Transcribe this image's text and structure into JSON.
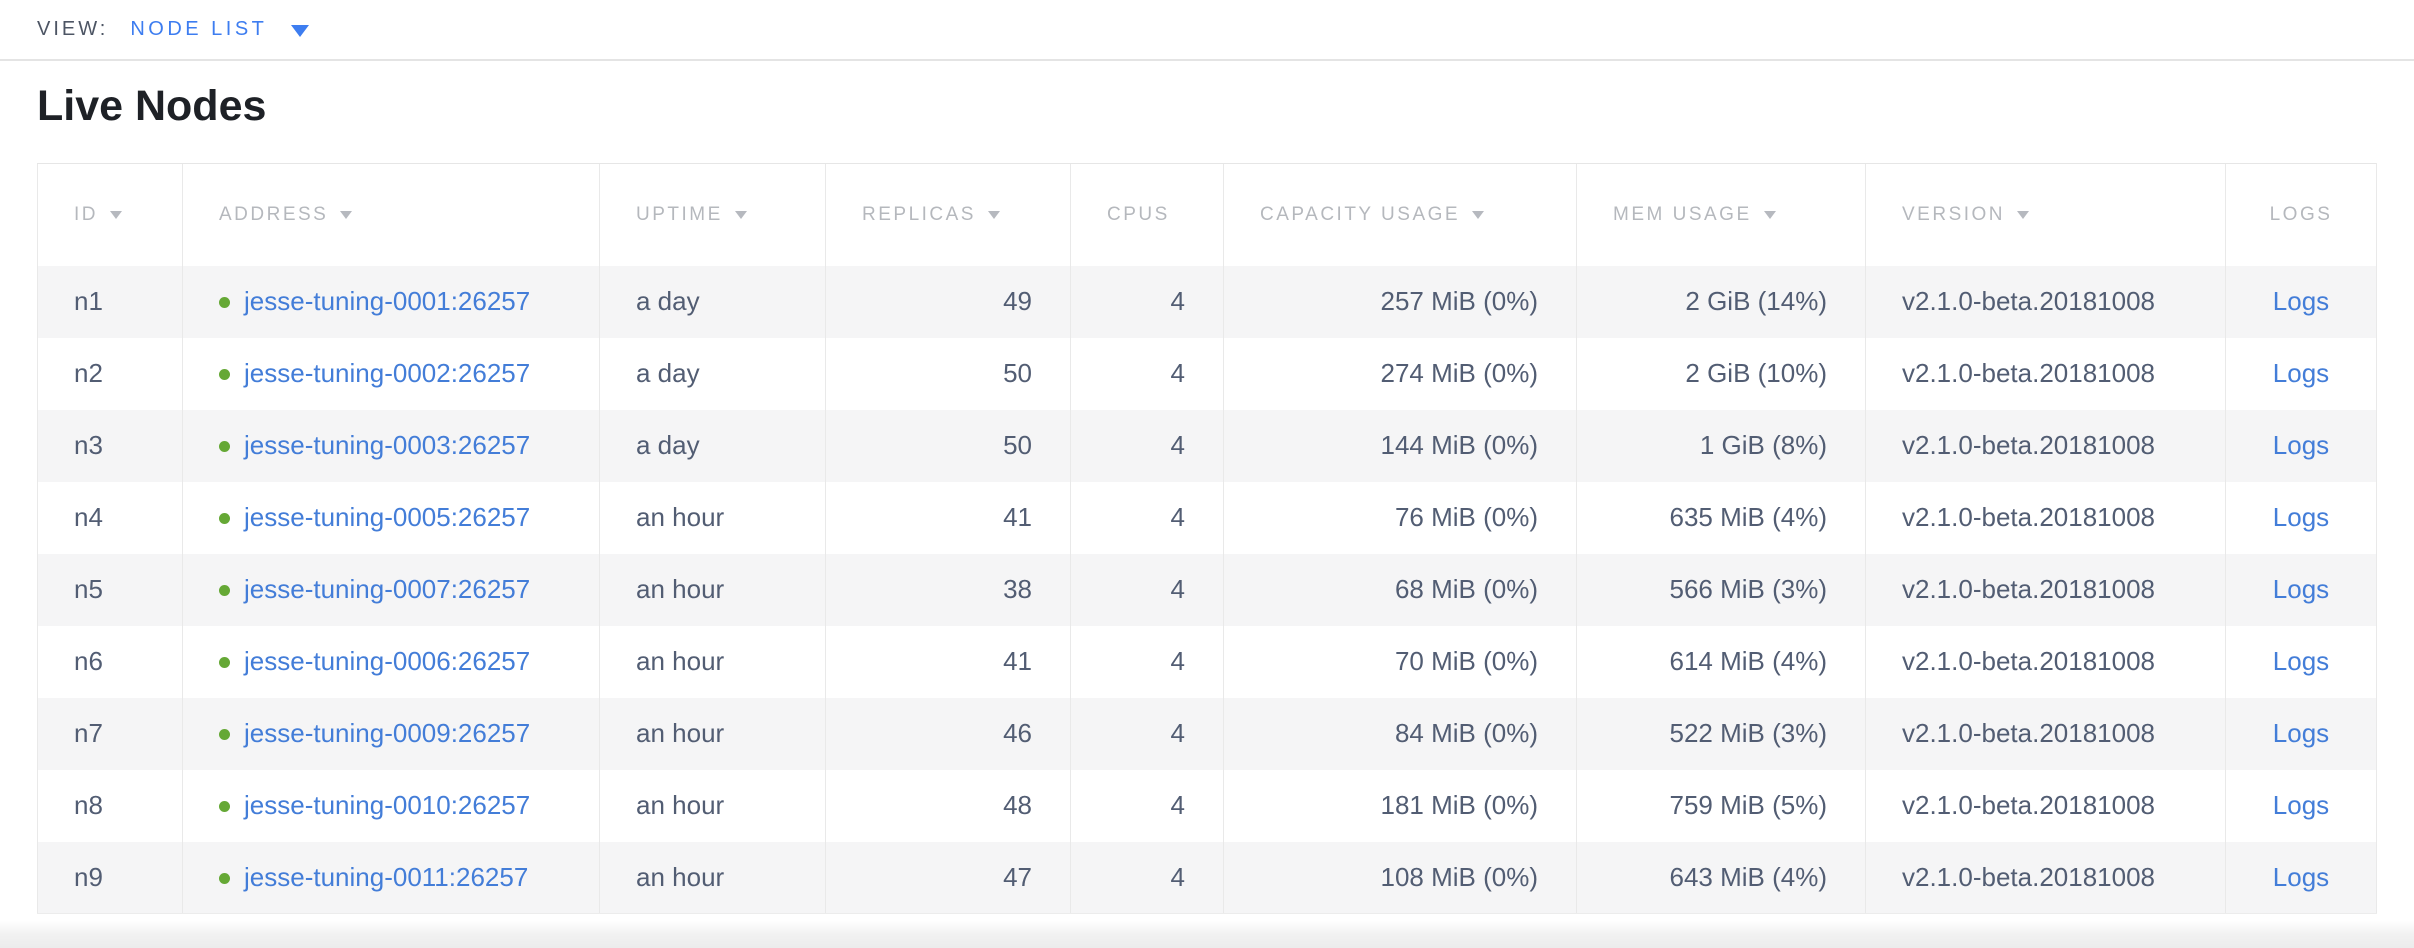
{
  "view_bar": {
    "label": "VIEW:",
    "selected": "NODE LIST"
  },
  "section": {
    "title": "Live Nodes"
  },
  "table": {
    "columns": [
      {
        "id": "id",
        "label": "ID",
        "sortable": true,
        "align": "left"
      },
      {
        "id": "address",
        "label": "ADDRESS",
        "sortable": true,
        "align": "left"
      },
      {
        "id": "uptime",
        "label": "UPTIME",
        "sortable": true,
        "align": "left"
      },
      {
        "id": "replicas",
        "label": "REPLICAS",
        "sortable": true,
        "align": "right"
      },
      {
        "id": "cpus",
        "label": "CPUS",
        "sortable": false,
        "align": "right"
      },
      {
        "id": "capacity_usage",
        "label": "CAPACITY USAGE",
        "sortable": true,
        "align": "right"
      },
      {
        "id": "mem_usage",
        "label": "MEM USAGE",
        "sortable": true,
        "align": "right"
      },
      {
        "id": "version",
        "label": "VERSION",
        "sortable": true,
        "align": "left"
      },
      {
        "id": "logs",
        "label": "LOGS",
        "sortable": false,
        "align": "center"
      }
    ],
    "rows": [
      {
        "id": "n1",
        "status": "healthy",
        "address": "jesse-tuning-0001:26257",
        "uptime": "a day",
        "replicas": "49",
        "cpus": "4",
        "capacity_usage": "257 MiB (0%)",
        "mem_usage": "2 GiB (14%)",
        "version": "v2.1.0-beta.20181008",
        "logs_label": "Logs"
      },
      {
        "id": "n2",
        "status": "healthy",
        "address": "jesse-tuning-0002:26257",
        "uptime": "a day",
        "replicas": "50",
        "cpus": "4",
        "capacity_usage": "274 MiB (0%)",
        "mem_usage": "2 GiB (10%)",
        "version": "v2.1.0-beta.20181008",
        "logs_label": "Logs"
      },
      {
        "id": "n3",
        "status": "healthy",
        "address": "jesse-tuning-0003:26257",
        "uptime": "a day",
        "replicas": "50",
        "cpus": "4",
        "capacity_usage": "144 MiB (0%)",
        "mem_usage": "1 GiB (8%)",
        "version": "v2.1.0-beta.20181008",
        "logs_label": "Logs"
      },
      {
        "id": "n4",
        "status": "healthy",
        "address": "jesse-tuning-0005:26257",
        "uptime": "an hour",
        "replicas": "41",
        "cpus": "4",
        "capacity_usage": "76 MiB (0%)",
        "mem_usage": "635 MiB (4%)",
        "version": "v2.1.0-beta.20181008",
        "logs_label": "Logs"
      },
      {
        "id": "n5",
        "status": "healthy",
        "address": "jesse-tuning-0007:26257",
        "uptime": "an hour",
        "replicas": "38",
        "cpus": "4",
        "capacity_usage": "68 MiB (0%)",
        "mem_usage": "566 MiB (3%)",
        "version": "v2.1.0-beta.20181008",
        "logs_label": "Logs"
      },
      {
        "id": "n6",
        "status": "healthy",
        "address": "jesse-tuning-0006:26257",
        "uptime": "an hour",
        "replicas": "41",
        "cpus": "4",
        "capacity_usage": "70 MiB (0%)",
        "mem_usage": "614 MiB (4%)",
        "version": "v2.1.0-beta.20181008",
        "logs_label": "Logs"
      },
      {
        "id": "n7",
        "status": "healthy",
        "address": "jesse-tuning-0009:26257",
        "uptime": "an hour",
        "replicas": "46",
        "cpus": "4",
        "capacity_usage": "84 MiB (0%)",
        "mem_usage": "522 MiB (3%)",
        "version": "v2.1.0-beta.20181008",
        "logs_label": "Logs"
      },
      {
        "id": "n8",
        "status": "healthy",
        "address": "jesse-tuning-0010:26257",
        "uptime": "an hour",
        "replicas": "48",
        "cpus": "4",
        "capacity_usage": "181 MiB (0%)",
        "mem_usage": "759 MiB (5%)",
        "version": "v2.1.0-beta.20181008",
        "logs_label": "Logs"
      },
      {
        "id": "n9",
        "status": "healthy",
        "address": "jesse-tuning-0011:26257",
        "uptime": "an hour",
        "replicas": "47",
        "cpus": "4",
        "capacity_usage": "108 MiB (0%)",
        "mem_usage": "643 MiB (4%)",
        "version": "v2.1.0-beta.20181008",
        "logs_label": "Logs"
      }
    ]
  },
  "colors": {
    "link_blue": "#437dd8",
    "view_accent_blue": "#3d7df0",
    "healthy_green": "#65a835",
    "row_stripe": "#f5f5f6",
    "header_text": "#b5b8bd",
    "cell_text": "#525d73"
  }
}
